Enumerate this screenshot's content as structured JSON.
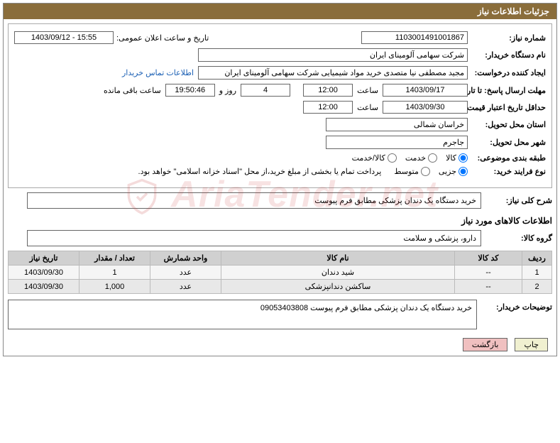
{
  "header": {
    "title": "جزئیات اطلاعات نیاز"
  },
  "labels": {
    "need_no": "شماره نیاز:",
    "announce_dt": "تاریخ و ساعت اعلان عمومی:",
    "buyer_org": "نام دستگاه خریدار:",
    "requester": "ایجاد کننده درخواست:",
    "contact_link": "اطلاعات تماس خریدار",
    "deadline": "مهلت ارسال پاسخ: تا تاریخ:",
    "hour": "ساعت",
    "days_and": "روز و",
    "remaining": "ساعت باقی مانده",
    "min_validity": "حداقل تاریخ اعتبار قیمت: تا تاریخ:",
    "delivery_province": "استان محل تحویل:",
    "delivery_city": "شهر محل تحویل:",
    "category": "طبقه بندی موضوعی:",
    "purchase_type": "نوع فرایند خرید:",
    "general_desc": "شرح کلی نیاز:",
    "goods_info": "اطلاعات کالاهای مورد نیاز",
    "goods_group": "گروه کالا:",
    "buyer_notes": "توضیحات خریدار:"
  },
  "fields": {
    "need_no": "1103001491001867",
    "announce_dt": "1403/09/12 - 15:55",
    "buyer_org": "شرکت سهامی آلومینای ایران",
    "requester": "مجید مصطفی نیا متصدی خرید مواد شیمیایی شرکت سهامی آلومینای ایران",
    "deadline_date": "1403/09/17",
    "deadline_time": "12:00",
    "days_left": "4",
    "countdown": "19:50:46",
    "min_validity_date": "1403/09/30",
    "min_validity_time": "12:00",
    "delivery_province": "خراسان شمالی",
    "delivery_city": "جاجرم",
    "general_desc": "خرید دستگاه یک دندان پزشکی مطابق فرم پیوست",
    "goods_group": "دارو، پزشکی و سلامت",
    "buyer_notes": "خرید دستگاه یک دندان پزشکی مطابق فرم پیوست 09053403808"
  },
  "category_options": {
    "goods": "کالا",
    "service": "خدمت",
    "both": "کالا/خدمت",
    "selected": "goods"
  },
  "purchase_options": {
    "partial": "جزیی",
    "medium": "متوسط",
    "note": "پرداخت تمام یا بخشی از مبلغ خرید،از محل \"اسناد خزانه اسلامی\" خواهد بود.",
    "selected": "partial"
  },
  "table": {
    "headers": {
      "row": "ردیف",
      "code": "کد کالا",
      "name": "نام کالا",
      "unit": "واحد شمارش",
      "qty": "تعداد / مقدار",
      "date": "تاریخ نیاز"
    },
    "rows": [
      {
        "row": "1",
        "code": "--",
        "name": "شید دندان",
        "unit": "عدد",
        "qty": "1",
        "date": "1403/09/30"
      },
      {
        "row": "2",
        "code": "--",
        "name": "ساکشن دندانپزشکی",
        "unit": "عدد",
        "qty": "1,000",
        "date": "1403/09/30"
      }
    ]
  },
  "buttons": {
    "print": "چاپ",
    "back": "بازگشت"
  },
  "watermark": "AriaTender.net",
  "colors": {
    "header_bg": "#8a6d3b",
    "header_fg": "#ffffff",
    "border": "#888888",
    "field_border": "#666666",
    "link": "#1a5fb4",
    "th_bg": "#d0d0d0",
    "btn_print": "#f0f0d0",
    "btn_back": "#f0c0c0",
    "watermark": "rgba(200,60,60,0.15)"
  }
}
